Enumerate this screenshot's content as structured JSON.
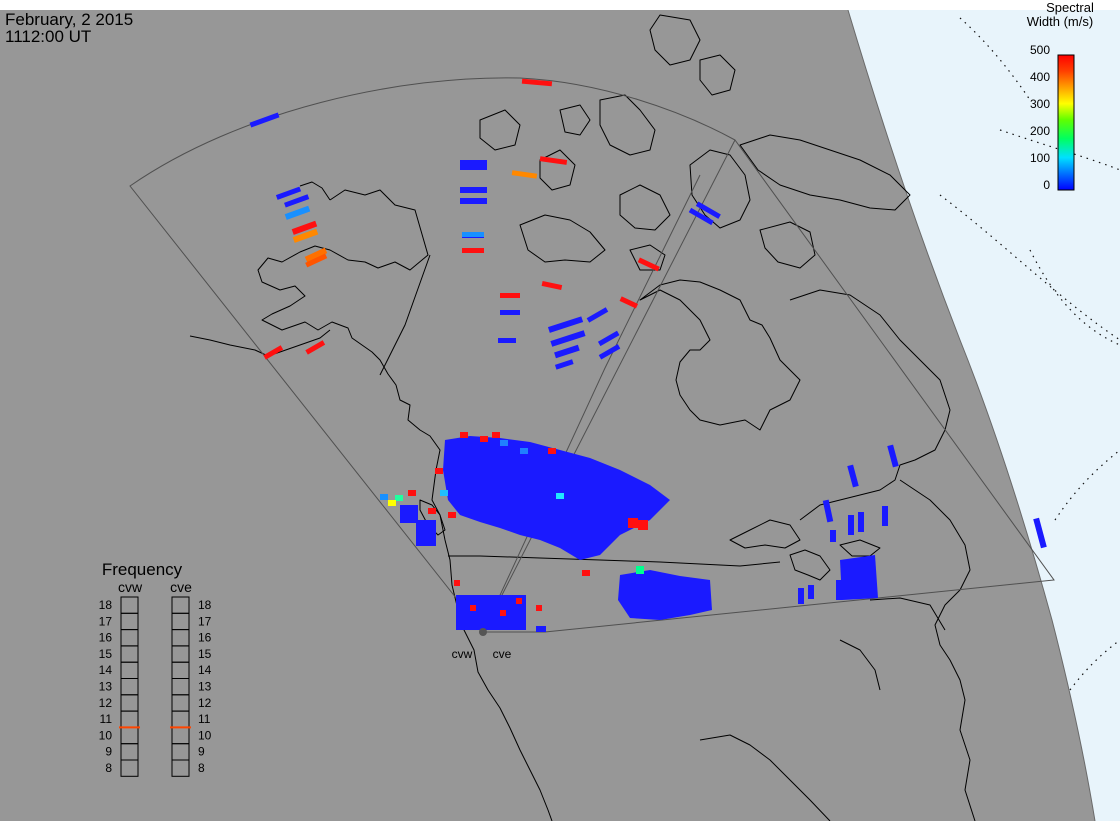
{
  "header": {
    "date": "February, 2 2015",
    "time": "1112:00 UT"
  },
  "colorbar": {
    "title_line1": "Spectral",
    "title_line2": "Width (m/s)",
    "ticks": [
      "500",
      "400",
      "300",
      "200",
      "100",
      "0"
    ],
    "stops": [
      "#0000ff",
      "#00a0ff",
      "#00ffff",
      "#00ff00",
      "#b0ff00",
      "#ffff00",
      "#ffa000",
      "#ff4000",
      "#ff0000"
    ]
  },
  "radars": {
    "west_code": "cvw",
    "east_code": "cve"
  },
  "frequency": {
    "title": "Frequency",
    "col_west": "cvw",
    "col_east": "cve",
    "ticks": [
      "18",
      "17",
      "16",
      "15",
      "14",
      "13",
      "12",
      "11",
      "10",
      "9",
      "8"
    ],
    "cvw_value": 10.5,
    "cve_value": 10.5,
    "marker_color": "#ff4500"
  },
  "colors": {
    "land_bg": "#979797",
    "space": "#e8f4fb",
    "fov_outline": "#505050",
    "coast": "#000000",
    "low_width": "#1a1aff",
    "high_width": "#ff1010"
  }
}
